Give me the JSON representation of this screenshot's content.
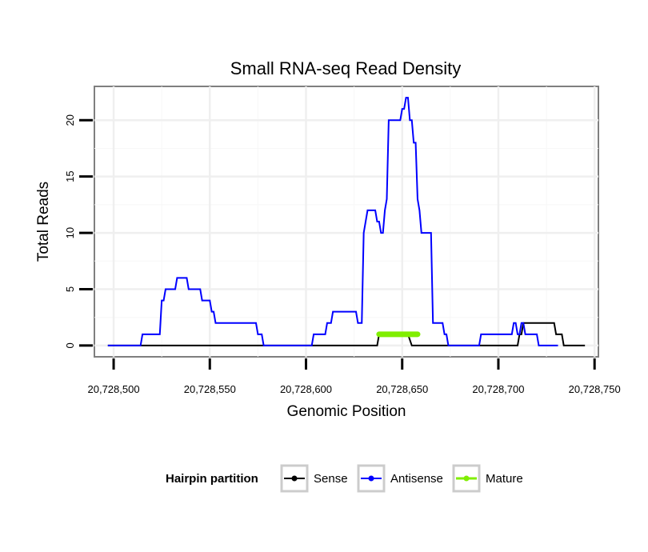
{
  "chart_data": {
    "type": "line",
    "title": "Small RNA-seq Read Density",
    "xlabel": "Genomic Position",
    "ylabel": "Total Reads",
    "xlim": [
      20728490,
      20728752
    ],
    "ylim": [
      -1,
      23
    ],
    "x_ticks": [
      20728500,
      20728550,
      20728600,
      20728650,
      20728700,
      20728750
    ],
    "x_tick_labels": [
      "20,728,500",
      "20,728,550",
      "20,728,600",
      "20,728,650",
      "20,728,700",
      "20,728,750"
    ],
    "y_ticks": [
      0,
      5,
      10,
      15,
      20
    ],
    "y_tick_labels": [
      "0",
      "5",
      "10",
      "15",
      "20"
    ],
    "grid": true,
    "legend": {
      "title": "Hairpin partition",
      "position": "bottom",
      "entries": [
        {
          "name": "Sense",
          "color": "#000000"
        },
        {
          "name": "Antisense",
          "color": "#0000ff"
        },
        {
          "name": "Mature",
          "color": "#80ee00"
        }
      ]
    },
    "series": [
      {
        "name": "Sense",
        "color": "#000000",
        "points": [
          [
            20728497,
            0
          ],
          [
            20728637,
            0
          ],
          [
            20728638,
            1
          ],
          [
            20728653,
            1
          ],
          [
            20728655,
            0
          ],
          [
            20728710,
            0
          ],
          [
            20728711,
            1
          ],
          [
            20728712,
            1
          ],
          [
            20728713,
            2
          ],
          [
            20728729,
            2
          ],
          [
            20728730,
            1
          ],
          [
            20728733,
            1
          ],
          [
            20728734,
            0
          ],
          [
            20728745,
            0
          ]
        ]
      },
      {
        "name": "Antisense",
        "color": "#0000ff",
        "points": [
          [
            20728497,
            0
          ],
          [
            20728514,
            0
          ],
          [
            20728515,
            1
          ],
          [
            20728524,
            1
          ],
          [
            20728525,
            4
          ],
          [
            20728526,
            4
          ],
          [
            20728527,
            5
          ],
          [
            20728532,
            5
          ],
          [
            20728533,
            6
          ],
          [
            20728538,
            6
          ],
          [
            20728539,
            5
          ],
          [
            20728545,
            5
          ],
          [
            20728546,
            4
          ],
          [
            20728550,
            4
          ],
          [
            20728551,
            3
          ],
          [
            20728552,
            3
          ],
          [
            20728553,
            2
          ],
          [
            20728574,
            2
          ],
          [
            20728575,
            1
          ],
          [
            20728577,
            1
          ],
          [
            20728578,
            0
          ],
          [
            20728603,
            0
          ],
          [
            20728604,
            1
          ],
          [
            20728610,
            1
          ],
          [
            20728611,
            2
          ],
          [
            20728613,
            2
          ],
          [
            20728614,
            3
          ],
          [
            20728626,
            3
          ],
          [
            20728627,
            2
          ],
          [
            20728629,
            2
          ],
          [
            20728630,
            10
          ],
          [
            20728631,
            11
          ],
          [
            20728632,
            12
          ],
          [
            20728636,
            12
          ],
          [
            20728637,
            11
          ],
          [
            20728638,
            11
          ],
          [
            20728639,
            10
          ],
          [
            20728640,
            10
          ],
          [
            20728641,
            12
          ],
          [
            20728642,
            13
          ],
          [
            20728643,
            20
          ],
          [
            20728649,
            20
          ],
          [
            20728650,
            21
          ],
          [
            20728651,
            21
          ],
          [
            20728652,
            22
          ],
          [
            20728653,
            22
          ],
          [
            20728654,
            20
          ],
          [
            20728655,
            20
          ],
          [
            20728656,
            18
          ],
          [
            20728657,
            18
          ],
          [
            20728658,
            13
          ],
          [
            20728659,
            12
          ],
          [
            20728660,
            10
          ],
          [
            20728665,
            10
          ],
          [
            20728666,
            2
          ],
          [
            20728671,
            2
          ],
          [
            20728672,
            1
          ],
          [
            20728673,
            1
          ],
          [
            20728674,
            0
          ],
          [
            20728690,
            0
          ],
          [
            20728691,
            1
          ],
          [
            20728707,
            1
          ],
          [
            20728708,
            2
          ],
          [
            20728709,
            2
          ],
          [
            20728710,
            1
          ],
          [
            20728711,
            1
          ],
          [
            20728712,
            2
          ],
          [
            20728713,
            2
          ],
          [
            20728714,
            1
          ],
          [
            20728720,
            1
          ],
          [
            20728721,
            0
          ],
          [
            20728731,
            0
          ]
        ]
      },
      {
        "name": "Mature",
        "color": "#80ee00",
        "points": [
          [
            20728638,
            1
          ],
          [
            20728658,
            1
          ]
        ]
      }
    ]
  }
}
